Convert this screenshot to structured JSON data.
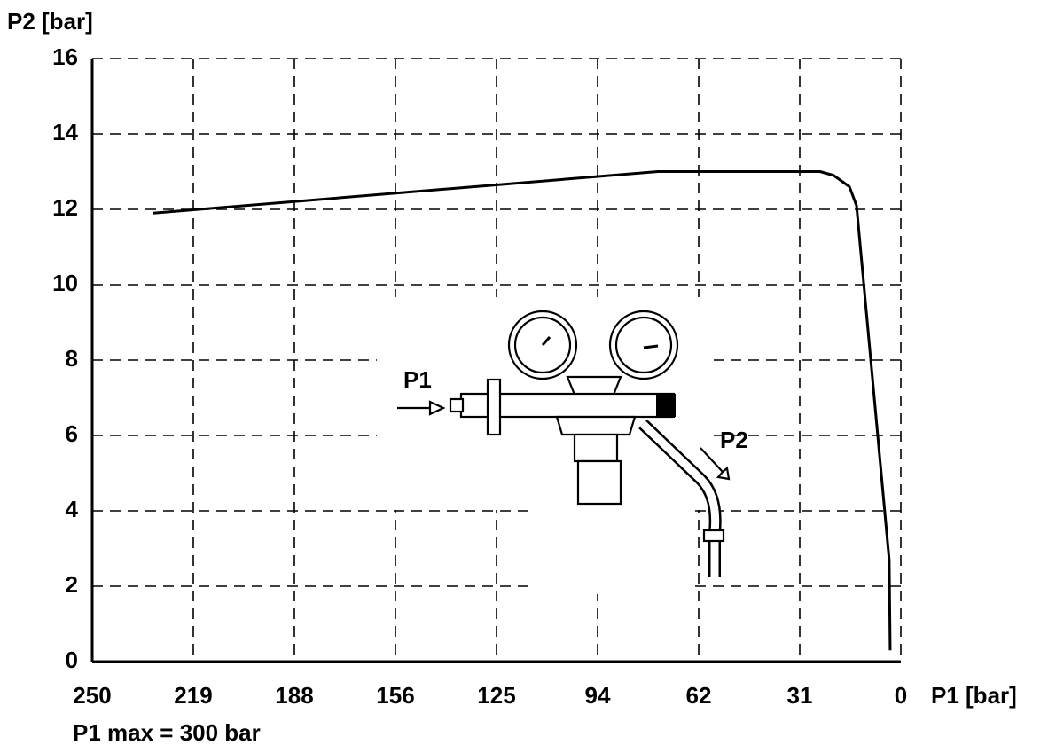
{
  "chart_data": {
    "type": "line",
    "y_label": "P2 [bar]",
    "x_label": "P1 [bar]",
    "note": "P1 max = 300 bar",
    "annotations": [
      "P1",
      "P2"
    ],
    "x": [
      231.1,
      75.1,
      25,
      20.8,
      15.9,
      13.7,
      3.6,
      3.3
    ],
    "series": [
      {
        "name": "P2",
        "color": "#000000",
        "values": [
          11.9,
          13,
          13,
          12.9,
          12.6,
          12.1,
          2.7,
          0.3
        ]
      }
    ],
    "xlim": [
      250,
      0
    ],
    "ylim": [
      0,
      16
    ],
    "xticks": [
      250,
      {
        "value": 218.75,
        "label": "219"
      },
      {
        "value": 187.5,
        "label": "188"
      },
      {
        "value": 156.25,
        "label": "156"
      },
      125,
      {
        "value": 93.75,
        "label": "94"
      },
      {
        "value": 62.5,
        "label": "62"
      },
      {
        "value": 31.25,
        "label": "31"
      },
      0
    ],
    "yticks": [
      0,
      2,
      4,
      6,
      8,
      10,
      12,
      14,
      16
    ],
    "grid": true
  }
}
